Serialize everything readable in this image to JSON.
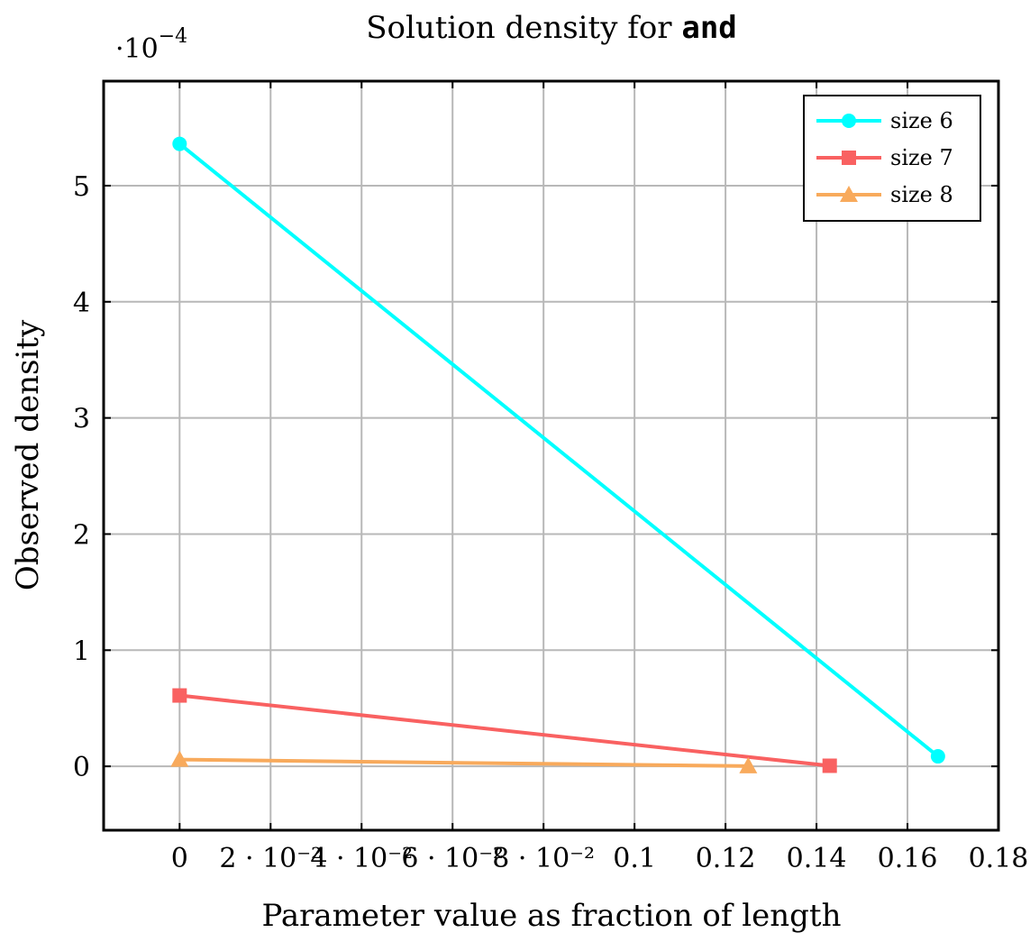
{
  "chart_data": {
    "type": "line",
    "title": {
      "prefix": "Solution density for ",
      "code": "and"
    },
    "xlabel": "Parameter value as fraction of length",
    "ylabel": "Observed density",
    "y_multiplier": {
      "base": "·10",
      "exponent": "−4"
    },
    "xlim": [
      -0.0167,
      0.18
    ],
    "ylim": [
      -5.5e-05,
      0.00059
    ],
    "x_ticks": [
      {
        "value": 0,
        "label": "0"
      },
      {
        "value": 0.02,
        "label": "2 · 10⁻²"
      },
      {
        "value": 0.04,
        "label": "4 · 10⁻²"
      },
      {
        "value": 0.06,
        "label": "6 · 10⁻²"
      },
      {
        "value": 0.08,
        "label": "8 · 10⁻²"
      },
      {
        "value": 0.1,
        "label": "0.1"
      },
      {
        "value": 0.12,
        "label": "0.12"
      },
      {
        "value": 0.14,
        "label": "0.14"
      },
      {
        "value": 0.16,
        "label": "0.16"
      },
      {
        "value": 0.18,
        "label": "0.18"
      }
    ],
    "y_ticks": [
      {
        "value": 0,
        "label": "0"
      },
      {
        "value": 0.0001,
        "label": "1"
      },
      {
        "value": 0.0002,
        "label": "2"
      },
      {
        "value": 0.0003,
        "label": "3"
      },
      {
        "value": 0.0004,
        "label": "4"
      },
      {
        "value": 0.0005,
        "label": "5"
      }
    ],
    "grid": true,
    "legend_position": "top-right",
    "series": [
      {
        "name": "size 6",
        "color": "#00ffff",
        "marker": "circle",
        "x": [
          0,
          0.1667
        ],
        "y": [
          0.000536,
          8.6e-06
        ]
      },
      {
        "name": "size 7",
        "color": "#f96161",
        "marker": "square",
        "x": [
          0,
          0.1429
        ],
        "y": [
          6.1e-05,
          5e-07
        ]
      },
      {
        "name": "size 8",
        "color": "#f8aa5c",
        "marker": "triangle",
        "x": [
          0,
          0.125
        ],
        "y": [
          5.8e-06,
          2e-07
        ]
      }
    ]
  }
}
